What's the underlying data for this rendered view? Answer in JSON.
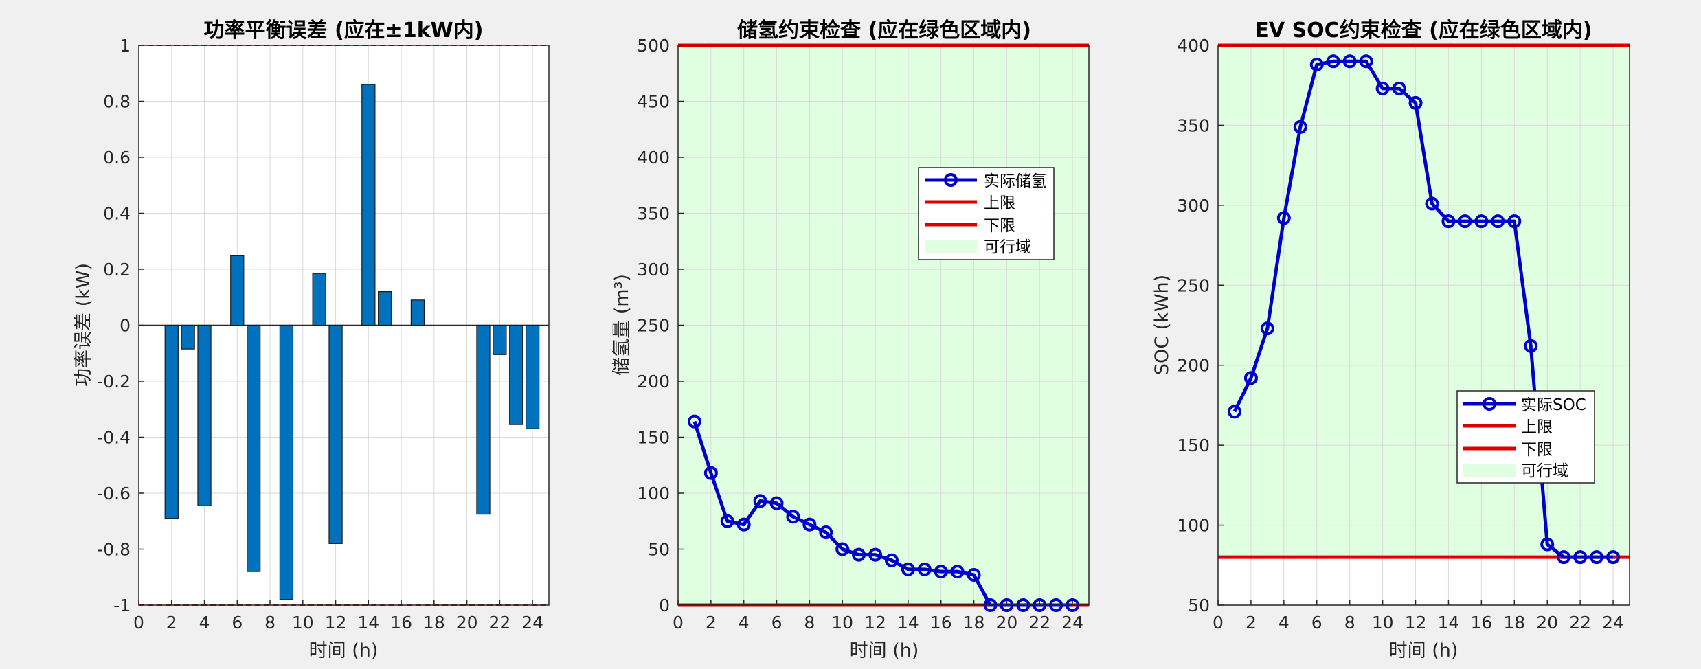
{
  "chart_data": [
    {
      "type": "bar",
      "title": "功率平衡误差 (应在±1kW内)",
      "xlabel": "时间 (h)",
      "ylabel": "功率误差 (kW)",
      "xlim": [
        0,
        25
      ],
      "ylim": [
        -1,
        1
      ],
      "xticks": [
        "0",
        "2",
        "4",
        "6",
        "8",
        "10",
        "12",
        "14",
        "16",
        "18",
        "20",
        "22",
        "24"
      ],
      "yticks": [
        "-1",
        "-0.8",
        "-0.6",
        "-0.4",
        "-0.2",
        "0",
        "0.2",
        "0.4",
        "0.6",
        "0.8",
        "1"
      ],
      "x": [
        1,
        2,
        3,
        4,
        5,
        6,
        7,
        8,
        9,
        10,
        11,
        12,
        13,
        14,
        15,
        16,
        17,
        18,
        19,
        20,
        21,
        22,
        23,
        24
      ],
      "values": [
        0,
        -0.69,
        -0.085,
        -0.645,
        0,
        0.25,
        -0.88,
        0,
        -0.98,
        0,
        0.185,
        -0.78,
        0,
        0.86,
        0.12,
        0,
        0.09,
        0,
        0,
        0,
        -0.675,
        -0.105,
        -0.355,
        -0.37
      ],
      "limits": [
        1,
        -1
      ],
      "grid": true,
      "colors": {
        "bar": "#0072bd",
        "limit": "#c00000"
      }
    },
    {
      "type": "line",
      "title": "储氢约束检查 (应在绿色区域内)",
      "xlabel": "时间 (h)",
      "ylabel": "储氢量 (m³)",
      "xlim": [
        0,
        25
      ],
      "ylim": [
        0,
        500
      ],
      "xticks": [
        "0",
        "2",
        "4",
        "6",
        "8",
        "10",
        "12",
        "14",
        "16",
        "18",
        "20",
        "22",
        "24"
      ],
      "yticks": [
        "0",
        "50",
        "100",
        "150",
        "200",
        "250",
        "300",
        "350",
        "400",
        "450",
        "500"
      ],
      "x": [
        1,
        2,
        3,
        4,
        5,
        6,
        7,
        8,
        9,
        10,
        11,
        12,
        13,
        14,
        15,
        16,
        17,
        18,
        19,
        20,
        21,
        22,
        23,
        24
      ],
      "series": [
        {
          "name": "实际储氢",
          "values": [
            164,
            118,
            75,
            72,
            93,
            91,
            79,
            72,
            65,
            50,
            45,
            45,
            40,
            32,
            32,
            30,
            30,
            27,
            0,
            0,
            0,
            0,
            0,
            0
          ]
        }
      ],
      "upper": 500,
      "lower": 0,
      "legend": [
        "实际储氢",
        "上限",
        "下限",
        "可行域"
      ],
      "legend_position": "top-right",
      "grid": true,
      "colors": {
        "line": "#0000cc",
        "limit": "#dd0000",
        "feasible": "#e0ffe0"
      }
    },
    {
      "type": "line",
      "title": "EV SOC约束检查 (应在绿色区域内)",
      "xlabel": "时间 (h)",
      "ylabel": "SOC (kWh)",
      "xlim": [
        0,
        25
      ],
      "ylim": [
        50,
        400
      ],
      "xticks": [
        "0",
        "2",
        "4",
        "6",
        "8",
        "10",
        "12",
        "14",
        "16",
        "18",
        "20",
        "22",
        "24"
      ],
      "yticks": [
        "50",
        "100",
        "150",
        "200",
        "250",
        "300",
        "350",
        "400"
      ],
      "x": [
        1,
        2,
        3,
        4,
        5,
        6,
        7,
        8,
        9,
        10,
        11,
        12,
        13,
        14,
        15,
        16,
        17,
        18,
        19,
        20,
        21,
        22,
        23,
        24
      ],
      "series": [
        {
          "name": "实际SOC",
          "values": [
            171,
            192,
            223,
            292,
            349,
            388,
            390,
            390,
            390,
            373,
            373,
            364,
            301,
            290,
            290,
            290,
            290,
            290,
            212,
            88,
            80,
            80,
            80,
            80
          ]
        }
      ],
      "upper": 400,
      "lower": 80,
      "legend": [
        "实际SOC",
        "上限",
        "下限",
        "可行域"
      ],
      "legend_position": "center-right",
      "grid": true,
      "colors": {
        "line": "#0000cc",
        "limit": "#dd0000",
        "feasible": "#e0ffe0"
      }
    }
  ]
}
